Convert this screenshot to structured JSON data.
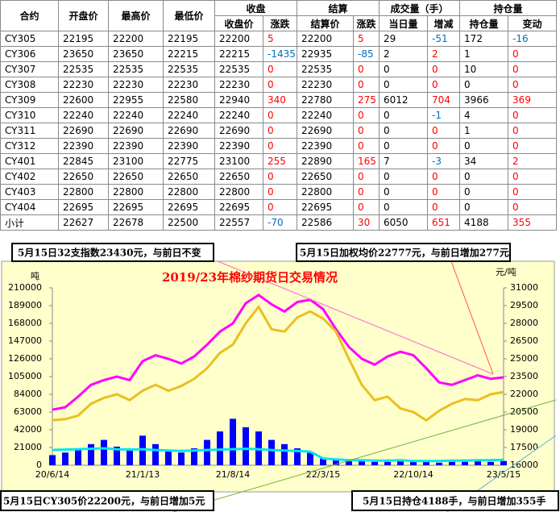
{
  "table": {
    "header": [
      "合约",
      "开盘价",
      "最高价",
      "最低价",
      "收盘",
      "结算",
      "成交量（手）",
      "持仓量"
    ],
    "subheader": [
      "收盘价",
      "涨跌",
      "结算价",
      "涨跌",
      "当日量",
      "增减",
      "持仓量",
      "变动"
    ],
    "rows": [
      [
        "CY305",
        22195,
        22200,
        22195,
        22200,
        5,
        22200,
        5,
        29,
        -51,
        172,
        -16
      ],
      [
        "CY306",
        23650,
        23650,
        22215,
        22215,
        -1435,
        22935,
        -85,
        2,
        2,
        1,
        0
      ],
      [
        "CY307",
        22535,
        22535,
        22535,
        22535,
        0,
        22535,
        0,
        0,
        0,
        10,
        0
      ],
      [
        "CY308",
        22230,
        22230,
        22230,
        22230,
        0,
        22230,
        0,
        0,
        0,
        0,
        0
      ],
      [
        "CY309",
        22600,
        22955,
        22580,
        22940,
        340,
        22780,
        275,
        6012,
        704,
        3966,
        369
      ],
      [
        "CY310",
        22240,
        22240,
        22240,
        22240,
        0,
        22240,
        0,
        0,
        -1,
        4,
        0
      ],
      [
        "CY311",
        22690,
        22690,
        22690,
        22690,
        0,
        22690,
        0,
        0,
        0,
        1,
        0
      ],
      [
        "CY312",
        22390,
        22390,
        22390,
        22390,
        0,
        22390,
        0,
        0,
        0,
        0,
        0
      ],
      [
        "CY401",
        22845,
        23100,
        22775,
        23100,
        255,
        22890,
        165,
        7,
        -3,
        34,
        2
      ],
      [
        "CY402",
        22650,
        22650,
        22650,
        22650,
        0,
        22650,
        0,
        0,
        0,
        0,
        0
      ],
      [
        "CY403",
        22800,
        22800,
        22800,
        22800,
        0,
        22800,
        0,
        0,
        0,
        0,
        0
      ],
      [
        "CY404",
        22695,
        22695,
        22695,
        22695,
        0,
        22695,
        0,
        0,
        0,
        0,
        0
      ],
      [
        "小计",
        22627,
        22678,
        22500,
        22557,
        -70,
        22586,
        30,
        6050,
        651,
        4188,
        355
      ]
    ],
    "up_color": "#ff0000",
    "down_color": "#0070c0"
  },
  "chart_data": {
    "type": "line",
    "title": "2019/23年棉纱期货日交易情况",
    "y_label": "吨",
    "y2_label": "元/吨",
    "annotations": [
      "5月15日32支指数23430元，与前日不变",
      "5月15日加权均价22777元，与前日增加277元",
      "5月15日CY305价22200元，与前日增加5元",
      "5月15日持仓4188手，与前日增加355手"
    ],
    "categories": [
      "20/6/14",
      null,
      null,
      null,
      null,
      null,
      null,
      "21/1/13",
      null,
      null,
      null,
      null,
      null,
      null,
      "21/8/14",
      null,
      null,
      null,
      null,
      null,
      null,
      "22/3/15",
      null,
      null,
      null,
      null,
      null,
      null,
      "22/10/14",
      null,
      null,
      null,
      null,
      null,
      null,
      "23/5/15"
    ],
    "ylim": [
      0,
      210000
    ],
    "yticks": [
      0,
      21000,
      42000,
      63000,
      84000,
      105000,
      126000,
      147000,
      168000,
      189000,
      210000
    ],
    "y2lim": [
      16000,
      31000
    ],
    "y2ticks": [
      16000,
      17500,
      19000,
      20500,
      22000,
      23500,
      25000,
      26500,
      28000,
      29500,
      31000
    ],
    "series": [
      {
        "type": "bar",
        "color": "#0000ff",
        "values": [
          12000,
          15000,
          20000,
          25000,
          30000,
          22000,
          20000,
          35000,
          25000,
          18000,
          15000,
          20000,
          30000,
          40000,
          55000,
          45000,
          40000,
          30000,
          25000,
          20000,
          15000,
          8000,
          6000,
          5000,
          5000,
          4000,
          4000,
          5000,
          4000,
          4000,
          3000,
          4000,
          4000,
          5000,
          4000,
          5000
        ]
      },
      {
        "type": "line",
        "color": "#00e5ee",
        "values": [
          18000,
          18500,
          19000,
          19500,
          20000,
          19000,
          18500,
          19000,
          18000,
          17500,
          17000,
          17500,
          18000,
          18500,
          19000,
          19500,
          19000,
          18000,
          17500,
          17000,
          16000,
          8000,
          7000,
          6000,
          6000,
          5500,
          5500,
          6000,
          5000,
          5000,
          5000,
          5500,
          5500,
          6000,
          6000,
          6500
        ]
      },
      {
        "type": "line",
        "axis": "y2",
        "color": "#ff00ff",
        "values": [
          20700,
          20900,
          21800,
          22800,
          23200,
          23500,
          23200,
          24800,
          25300,
          25000,
          24600,
          25200,
          26200,
          27300,
          28000,
          29700,
          30400,
          29600,
          29000,
          29800,
          30000,
          29200,
          27500,
          26000,
          25000,
          24500,
          25200,
          25600,
          25300,
          24200,
          23000,
          22800,
          23200,
          23600,
          23300,
          23430
        ]
      },
      {
        "type": "line",
        "axis": "y2",
        "color": "#e8c020",
        "values": [
          19800,
          19900,
          20200,
          21200,
          21700,
          22000,
          21500,
          22300,
          22800,
          22300,
          22700,
          23300,
          24200,
          25500,
          26200,
          28000,
          29400,
          27500,
          27300,
          28500,
          29000,
          28400,
          27300,
          25000,
          22800,
          21500,
          21800,
          20800,
          20500,
          19800,
          20600,
          21200,
          21600,
          21500,
          22000,
          22200
        ]
      }
    ]
  }
}
